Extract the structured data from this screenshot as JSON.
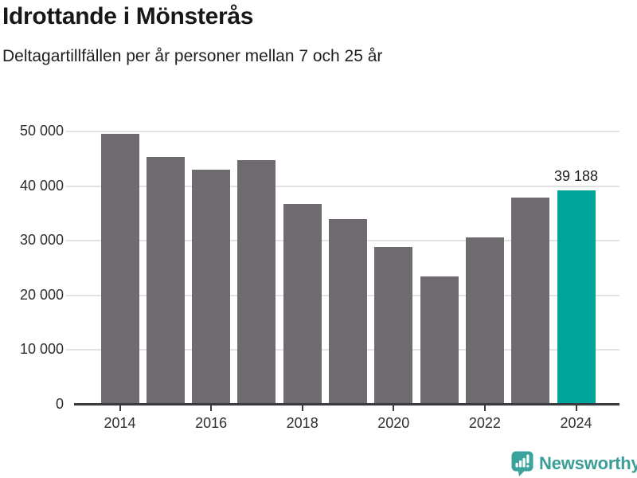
{
  "header": {
    "title": "Idrottande i Mönsterås",
    "subtitle": "Deltagartillfällen per år personer mellan 7 och 25 år"
  },
  "chart_data": {
    "type": "bar",
    "title": "Idrottande i Mönsterås",
    "subtitle": "Deltagartillfällen per år personer mellan 7 och 25 år",
    "categories": [
      "2014",
      "2015",
      "2016",
      "2017",
      "2018",
      "2019",
      "2020",
      "2021",
      "2022",
      "2023",
      "2024"
    ],
    "values": [
      49500,
      45300,
      43000,
      44800,
      36700,
      33900,
      28800,
      23400,
      30600,
      37900,
      39188
    ],
    "highlight_index": 10,
    "annotation": {
      "index": 10,
      "text": "39 188"
    },
    "y_ticks": [
      {
        "value": 50000,
        "label": "50 000"
      },
      {
        "value": 40000,
        "label": "40 000"
      },
      {
        "value": 30000,
        "label": "30 000"
      },
      {
        "value": 20000,
        "label": "20 000"
      },
      {
        "value": 10000,
        "label": "10 000"
      },
      {
        "value": 0,
        "label": "0"
      }
    ],
    "x_tick_labels": [
      "2014",
      "2016",
      "2018",
      "2020",
      "2022",
      "2024"
    ],
    "ylim": [
      0,
      50000
    ],
    "grid": true,
    "legend": "none",
    "colors": {
      "bar": "#6e6a70",
      "highlight": "#00a59a",
      "gridline": "#e2e2e2",
      "axis": "#3a3a3e",
      "tick_label": "#2e2e2e",
      "annotation": "#1f1f1f"
    }
  },
  "footer": {
    "brand": "Newsworthy",
    "logo_icon": "newsworthy-bar-chart-speech-bubble-icon",
    "brand_color": "#3a9e97"
  }
}
